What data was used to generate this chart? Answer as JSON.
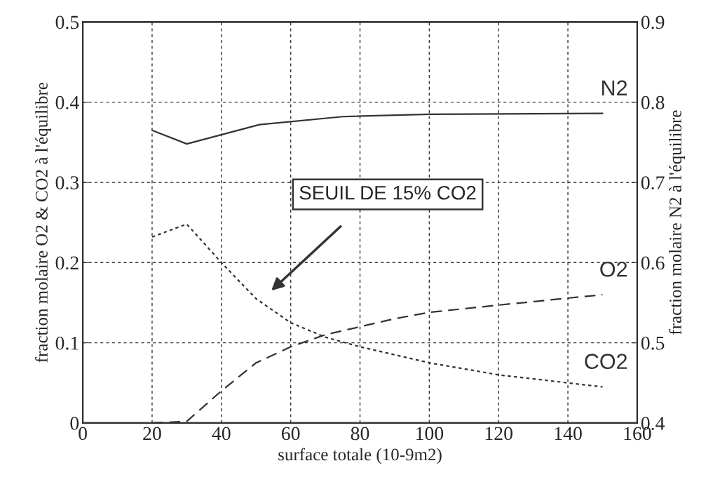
{
  "chart_data": {
    "type": "line",
    "xlabel": "surface totale (10-9m2)",
    "ylabel": "fraction molaire O2 & CO2 à l'équilibre",
    "y2label": "fraction molaire N2 à l'équilibre",
    "xlim": [
      0,
      160
    ],
    "xticks": [
      0,
      20,
      40,
      60,
      80,
      100,
      120,
      140,
      160
    ],
    "ylim": [
      0,
      0.5
    ],
    "yticks": [
      0,
      0.1,
      0.2,
      0.3,
      0.4,
      0.5
    ],
    "y2lim": [
      0.4,
      0.9
    ],
    "y2ticks": [
      0.4,
      0.5,
      0.6,
      0.7,
      0.8,
      0.9
    ],
    "grid": true,
    "legend": false,
    "marker": "none",
    "series": [
      {
        "name": "N2",
        "color": "#333333",
        "axis": "y2",
        "line_style": "solid",
        "x": [
          20,
          30,
          51,
          75,
          100,
          150
        ],
        "values": [
          0.765,
          0.748,
          0.772,
          0.782,
          0.785,
          0.786
        ]
      },
      {
        "name": "O2",
        "color": "#333333",
        "line_style": "dashed",
        "x": [
          20,
          30,
          40,
          50,
          60,
          70,
          80,
          90,
          100,
          120,
          150
        ],
        "values": [
          0,
          0.002,
          0.04,
          0.075,
          0.095,
          0.11,
          0.12,
          0.13,
          0.138,
          0.147,
          0.16
        ]
      },
      {
        "name": "CO2",
        "color": "#333333",
        "line_style": "dotted",
        "x": [
          20,
          30,
          40,
          50,
          60,
          70,
          80,
          90,
          100,
          120,
          150
        ],
        "values": [
          0.232,
          0.248,
          0.2,
          0.155,
          0.125,
          0.107,
          0.095,
          0.085,
          0.075,
          0.06,
          0.045
        ]
      }
    ],
    "annotations": [
      "SEUIL DE 15% CO2"
    ]
  }
}
